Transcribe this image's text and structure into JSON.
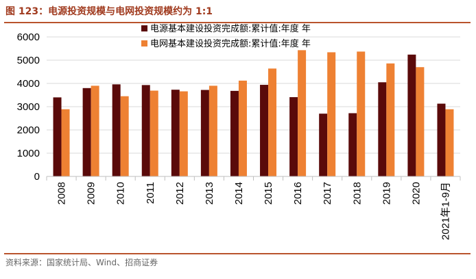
{
  "header": {
    "title": "图 123：电源投资规模与电网投资规模约为 1:1"
  },
  "footer": {
    "source": "资料来源：国家统计局、Wind、招商证券"
  },
  "colors": {
    "series1": "#5a0a0a",
    "series2": "#ee8133",
    "rule": "#b9532c",
    "title": "#a03a1e"
  },
  "chart_data": {
    "type": "bar",
    "title": "",
    "xlabel": "",
    "ylabel": "",
    "ylim": [
      0,
      6000
    ],
    "yticks": [
      "0",
      "1000",
      "2000",
      "3000",
      "4000",
      "5000",
      "6000"
    ],
    "categories": [
      "2008",
      "2009",
      "2010",
      "2011",
      "2012",
      "2013",
      "2014",
      "2015",
      "2016",
      "2017",
      "2018",
      "2019",
      "2020",
      "2021年1-9月"
    ],
    "series": [
      {
        "name": "电源基本建设投资完成额:累计值:年度 年",
        "values": [
          3400,
          3800,
          3960,
          3930,
          3730,
          3720,
          3680,
          3940,
          3410,
          2700,
          2720,
          4050,
          5240,
          3130
        ]
      },
      {
        "name": "电网基本建设投资完成额:累计值:年度 年",
        "values": [
          2890,
          3900,
          3450,
          3690,
          3660,
          3900,
          4120,
          4640,
          5430,
          5340,
          5370,
          4860,
          4700,
          2890
        ]
      }
    ]
  }
}
